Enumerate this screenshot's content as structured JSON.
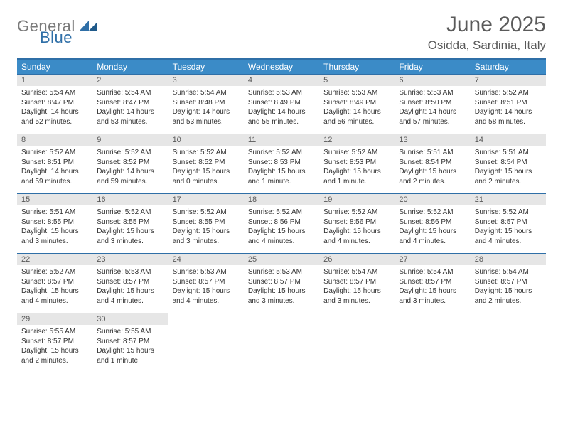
{
  "logo": {
    "gray": "General",
    "blue": "Blue"
  },
  "title": "June 2025",
  "location": "Osidda, Sardinia, Italy",
  "colors": {
    "header_bg": "#3b8bc7",
    "border": "#2f6fa7",
    "daynum_bg": "#e6e6e6",
    "text": "#333333",
    "muted": "#5a5a5a",
    "logo_gray": "#7a7a7a",
    "logo_blue": "#2f6fa7"
  },
  "day_headers": [
    "Sunday",
    "Monday",
    "Tuesday",
    "Wednesday",
    "Thursday",
    "Friday",
    "Saturday"
  ],
  "days": [
    {
      "n": "1",
      "sunrise": "Sunrise: 5:54 AM",
      "sunset": "Sunset: 8:47 PM",
      "daylight": "Daylight: 14 hours and 52 minutes."
    },
    {
      "n": "2",
      "sunrise": "Sunrise: 5:54 AM",
      "sunset": "Sunset: 8:47 PM",
      "daylight": "Daylight: 14 hours and 53 minutes."
    },
    {
      "n": "3",
      "sunrise": "Sunrise: 5:54 AM",
      "sunset": "Sunset: 8:48 PM",
      "daylight": "Daylight: 14 hours and 53 minutes."
    },
    {
      "n": "4",
      "sunrise": "Sunrise: 5:53 AM",
      "sunset": "Sunset: 8:49 PM",
      "daylight": "Daylight: 14 hours and 55 minutes."
    },
    {
      "n": "5",
      "sunrise": "Sunrise: 5:53 AM",
      "sunset": "Sunset: 8:49 PM",
      "daylight": "Daylight: 14 hours and 56 minutes."
    },
    {
      "n": "6",
      "sunrise": "Sunrise: 5:53 AM",
      "sunset": "Sunset: 8:50 PM",
      "daylight": "Daylight: 14 hours and 57 minutes."
    },
    {
      "n": "7",
      "sunrise": "Sunrise: 5:52 AM",
      "sunset": "Sunset: 8:51 PM",
      "daylight": "Daylight: 14 hours and 58 minutes."
    },
    {
      "n": "8",
      "sunrise": "Sunrise: 5:52 AM",
      "sunset": "Sunset: 8:51 PM",
      "daylight": "Daylight: 14 hours and 59 minutes."
    },
    {
      "n": "9",
      "sunrise": "Sunrise: 5:52 AM",
      "sunset": "Sunset: 8:52 PM",
      "daylight": "Daylight: 14 hours and 59 minutes."
    },
    {
      "n": "10",
      "sunrise": "Sunrise: 5:52 AM",
      "sunset": "Sunset: 8:52 PM",
      "daylight": "Daylight: 15 hours and 0 minutes."
    },
    {
      "n": "11",
      "sunrise": "Sunrise: 5:52 AM",
      "sunset": "Sunset: 8:53 PM",
      "daylight": "Daylight: 15 hours and 1 minute."
    },
    {
      "n": "12",
      "sunrise": "Sunrise: 5:52 AM",
      "sunset": "Sunset: 8:53 PM",
      "daylight": "Daylight: 15 hours and 1 minute."
    },
    {
      "n": "13",
      "sunrise": "Sunrise: 5:51 AM",
      "sunset": "Sunset: 8:54 PM",
      "daylight": "Daylight: 15 hours and 2 minutes."
    },
    {
      "n": "14",
      "sunrise": "Sunrise: 5:51 AM",
      "sunset": "Sunset: 8:54 PM",
      "daylight": "Daylight: 15 hours and 2 minutes."
    },
    {
      "n": "15",
      "sunrise": "Sunrise: 5:51 AM",
      "sunset": "Sunset: 8:55 PM",
      "daylight": "Daylight: 15 hours and 3 minutes."
    },
    {
      "n": "16",
      "sunrise": "Sunrise: 5:52 AM",
      "sunset": "Sunset: 8:55 PM",
      "daylight": "Daylight: 15 hours and 3 minutes."
    },
    {
      "n": "17",
      "sunrise": "Sunrise: 5:52 AM",
      "sunset": "Sunset: 8:55 PM",
      "daylight": "Daylight: 15 hours and 3 minutes."
    },
    {
      "n": "18",
      "sunrise": "Sunrise: 5:52 AM",
      "sunset": "Sunset: 8:56 PM",
      "daylight": "Daylight: 15 hours and 4 minutes."
    },
    {
      "n": "19",
      "sunrise": "Sunrise: 5:52 AM",
      "sunset": "Sunset: 8:56 PM",
      "daylight": "Daylight: 15 hours and 4 minutes."
    },
    {
      "n": "20",
      "sunrise": "Sunrise: 5:52 AM",
      "sunset": "Sunset: 8:56 PM",
      "daylight": "Daylight: 15 hours and 4 minutes."
    },
    {
      "n": "21",
      "sunrise": "Sunrise: 5:52 AM",
      "sunset": "Sunset: 8:57 PM",
      "daylight": "Daylight: 15 hours and 4 minutes."
    },
    {
      "n": "22",
      "sunrise": "Sunrise: 5:52 AM",
      "sunset": "Sunset: 8:57 PM",
      "daylight": "Daylight: 15 hours and 4 minutes."
    },
    {
      "n": "23",
      "sunrise": "Sunrise: 5:53 AM",
      "sunset": "Sunset: 8:57 PM",
      "daylight": "Daylight: 15 hours and 4 minutes."
    },
    {
      "n": "24",
      "sunrise": "Sunrise: 5:53 AM",
      "sunset": "Sunset: 8:57 PM",
      "daylight": "Daylight: 15 hours and 4 minutes."
    },
    {
      "n": "25",
      "sunrise": "Sunrise: 5:53 AM",
      "sunset": "Sunset: 8:57 PM",
      "daylight": "Daylight: 15 hours and 3 minutes."
    },
    {
      "n": "26",
      "sunrise": "Sunrise: 5:54 AM",
      "sunset": "Sunset: 8:57 PM",
      "daylight": "Daylight: 15 hours and 3 minutes."
    },
    {
      "n": "27",
      "sunrise": "Sunrise: 5:54 AM",
      "sunset": "Sunset: 8:57 PM",
      "daylight": "Daylight: 15 hours and 3 minutes."
    },
    {
      "n": "28",
      "sunrise": "Sunrise: 5:54 AM",
      "sunset": "Sunset: 8:57 PM",
      "daylight": "Daylight: 15 hours and 2 minutes."
    },
    {
      "n": "29",
      "sunrise": "Sunrise: 5:55 AM",
      "sunset": "Sunset: 8:57 PM",
      "daylight": "Daylight: 15 hours and 2 minutes."
    },
    {
      "n": "30",
      "sunrise": "Sunrise: 5:55 AM",
      "sunset": "Sunset: 8:57 PM",
      "daylight": "Daylight: 15 hours and 1 minute."
    }
  ]
}
